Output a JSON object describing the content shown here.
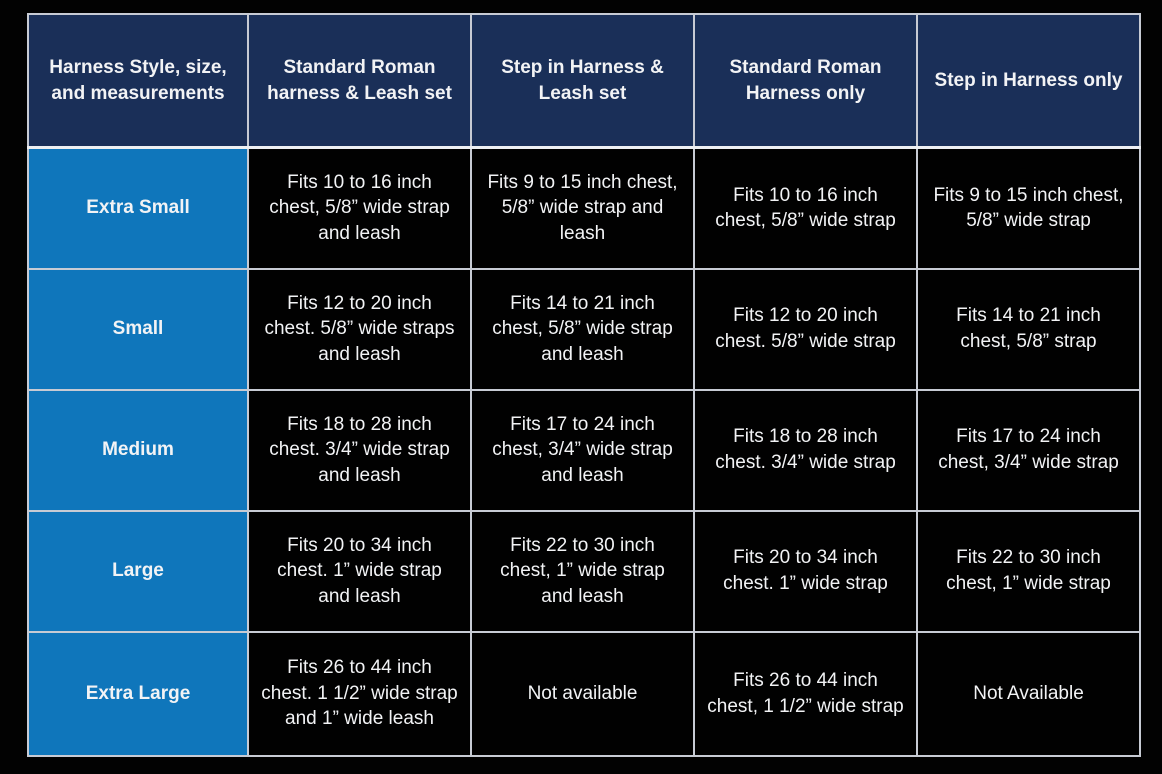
{
  "colors": {
    "page_background": "#020202",
    "header_background": "#1a2f58",
    "row_label_background": "#0f76bb",
    "data_cell_background": "#010101",
    "grid_line": "#c7cbd4",
    "text": "#f2f3f5"
  },
  "table": {
    "headers": [
      "Harness Style, size, and measurements",
      "Standard Roman harness & Leash set",
      "Step in Harness & Leash set",
      "Standard Roman Harness only",
      "Step in Harness only"
    ],
    "rows": [
      {
        "label": "Extra Small",
        "cells": [
          "Fits 10 to 16 inch chest, 5/8” wide strap and leash",
          "Fits 9 to 15 inch chest, 5/8” wide strap and leash",
          "Fits 10 to 16 inch chest, 5/8” wide strap",
          "Fits 9 to 15 inch chest, 5/8” wide strap"
        ]
      },
      {
        "label": "Small",
        "cells": [
          "Fits 12 to 20 inch chest. 5/8” wide straps and leash",
          "Fits 14 to 21 inch chest, 5/8” wide strap and leash",
          "Fits 12 to 20 inch chest. 5/8” wide strap",
          "Fits 14 to 21 inch chest, 5/8” strap"
        ]
      },
      {
        "label": "Medium",
        "cells": [
          "Fits 18 to 28 inch chest. 3/4” wide strap and leash",
          "Fits 17 to 24 inch chest, 3/4” wide strap and leash",
          "Fits 18 to 28 inch chest. 3/4” wide strap",
          "Fits 17 to 24 inch chest, 3/4” wide strap"
        ]
      },
      {
        "label": "Large",
        "cells": [
          "Fits 20 to 34 inch chest. 1” wide strap and leash",
          "Fits 22 to 30 inch chest, 1” wide strap and leash",
          "Fits 20 to 34 inch chest. 1” wide strap",
          "Fits 22 to 30 inch chest, 1” wide strap"
        ]
      },
      {
        "label": "Extra Large",
        "cells": [
          "Fits 26 to 44 inch chest. 1 1/2” wide strap and 1” wide leash",
          "Not available",
          "Fits 26 to 44 inch chest, 1 1/2” wide strap",
          "Not Available"
        ]
      }
    ]
  },
  "chart_data": {
    "type": "table",
    "title": "Harness Style, size, and measurements",
    "columns": [
      "Harness Style, size, and measurements",
      "Standard Roman harness & Leash set",
      "Step in Harness & Leash set",
      "Standard Roman Harness only",
      "Step in Harness only"
    ],
    "rows": [
      [
        "Extra Small",
        "Fits 10 to 16 inch chest, 5/8” wide strap and leash",
        "Fits 9 to 15 inch chest, 5/8” wide strap and leash",
        "Fits 10 to 16 inch chest, 5/8” wide strap",
        "Fits 9 to 15 inch chest, 5/8” wide strap"
      ],
      [
        "Small",
        "Fits 12 to 20 inch chest. 5/8” wide straps and leash",
        "Fits 14 to 21 inch chest, 5/8” wide strap and leash",
        "Fits 12 to 20 inch chest. 5/8” wide strap",
        "Fits 14 to 21 inch chest, 5/8” strap"
      ],
      [
        "Medium",
        "Fits 18 to 28 inch chest. 3/4” wide strap and leash",
        "Fits 17 to 24 inch chest, 3/4” wide strap and leash",
        "Fits 18 to 28 inch chest. 3/4” wide strap",
        "Fits 17 to 24 inch chest, 3/4” wide strap"
      ],
      [
        "Large",
        "Fits 20 to 34 inch chest. 1” wide strap and leash",
        "Fits 22 to 30 inch chest, 1” wide strap and leash",
        "Fits 20 to 34 inch chest. 1” wide strap",
        "Fits 22 to 30 inch chest, 1” wide strap"
      ],
      [
        "Extra Large",
        "Fits 26 to 44 inch chest. 1 1/2” wide strap and 1” wide leash",
        "Not available",
        "Fits 26 to 44 inch chest, 1 1/2” wide strap",
        "Not Available"
      ]
    ]
  }
}
